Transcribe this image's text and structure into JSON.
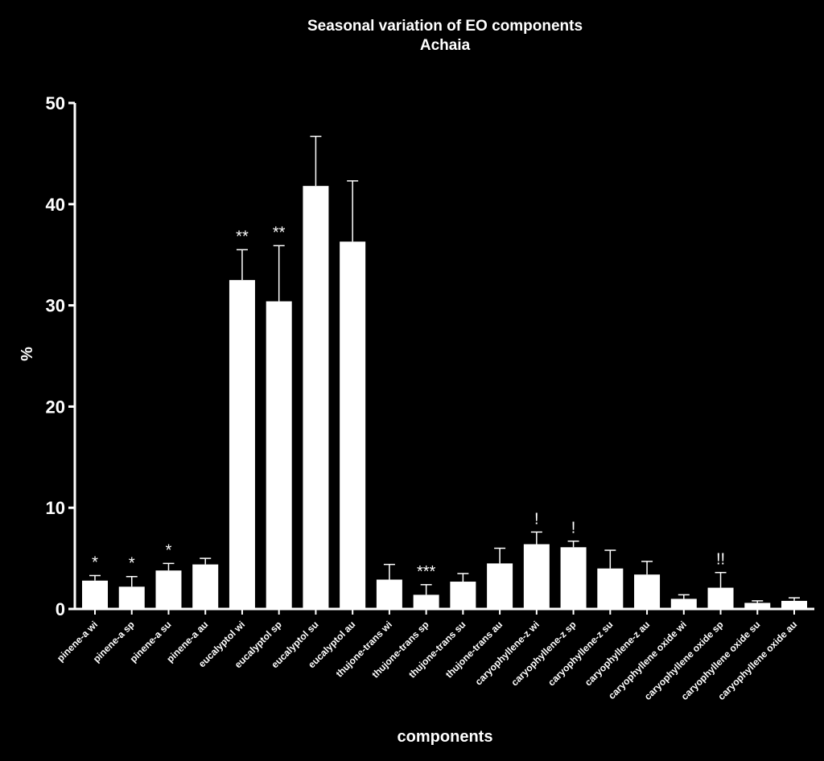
{
  "chart_data": {
    "type": "bar",
    "title": "Seasonal variation of EO components",
    "subtitle": "Achaia",
    "xlabel": "components",
    "ylabel": "%",
    "ylim": [
      0,
      50
    ],
    "yticks": [
      0,
      10,
      20,
      30,
      40,
      50
    ],
    "grid": false,
    "legend": "none",
    "colors": {
      "background": "#000000",
      "bar": "#ffffff",
      "text": "#ffffff"
    },
    "categories": [
      "pinene-a wi",
      "pinene-a sp",
      "pinene-a su",
      "pinene-a au",
      "eucalyptol wi",
      "eucalyptol sp",
      "eucalyptol su",
      "eucalyptol au",
      "thujone-trans wi",
      "thujone-trans sp",
      "thujone-trans su",
      "thujone-trans au",
      "caryophyllene-z wi",
      "caryophyllene-z sp",
      "caryophyllene-z su",
      "caryophyllene-z au",
      "caryophyllene oxide wi",
      "caryophyllene oxide sp",
      "caryophyllene oxide su",
      "caryophyllene oxide au"
    ],
    "values": [
      2.8,
      2.2,
      3.8,
      4.4,
      32.5,
      30.4,
      41.8,
      36.3,
      2.9,
      1.4,
      2.7,
      4.5,
      6.4,
      6.1,
      4.0,
      3.4,
      1.0,
      2.1,
      0.6,
      0.8
    ],
    "errors": [
      0.5,
      1.0,
      0.7,
      0.6,
      3.0,
      5.5,
      4.9,
      6.0,
      1.5,
      1.0,
      0.8,
      1.5,
      1.2,
      0.6,
      1.8,
      1.3,
      0.4,
      1.5,
      0.2,
      0.3
    ],
    "annotations": [
      "*",
      "*",
      "*",
      "",
      "**",
      "**",
      "",
      "",
      "",
      "***",
      "",
      "",
      "!",
      "!",
      "",
      "",
      "",
      "!!",
      "",
      ""
    ]
  }
}
